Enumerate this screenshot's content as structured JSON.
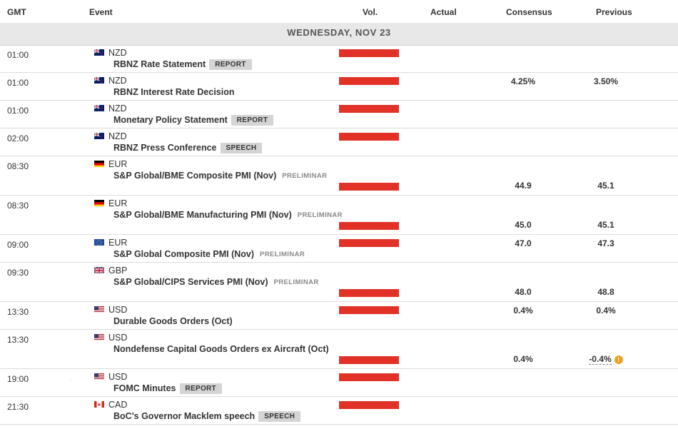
{
  "columns": {
    "gmt": "GMT",
    "event": "Event",
    "vol": "Vol.",
    "actual": "Actual",
    "consensus": "Consensus",
    "previous": "Previous"
  },
  "day_label": "WEDNESDAY, NOV 23",
  "colors": {
    "volume": "#e23227",
    "tag_bg": "#d4d4d4",
    "day_bg": "#e8e8e8",
    "warning": "#f0a020"
  },
  "events": [
    {
      "time": "01:00",
      "flag": "nz",
      "currency": "NZD",
      "event": "RBNZ Rate Statement",
      "tag": "REPORT",
      "preliminary": "",
      "consensus": "",
      "previous": "",
      "layout": "short"
    },
    {
      "time": "01:00",
      "flag": "nz",
      "currency": "NZD",
      "event": "RBNZ Interest Rate Decision",
      "tag": "",
      "preliminary": "",
      "consensus": "4.25%",
      "previous": "3.50%",
      "layout": "short"
    },
    {
      "time": "01:00",
      "flag": "nz",
      "currency": "NZD",
      "event": "Monetary Policy Statement",
      "tag": "REPORT",
      "preliminary": "",
      "consensus": "",
      "previous": "",
      "layout": "short"
    },
    {
      "time": "02:00",
      "flag": "nz",
      "currency": "NZD",
      "event": "RBNZ Press Conference",
      "tag": "SPEECH",
      "preliminary": "",
      "consensus": "",
      "previous": "",
      "layout": "short"
    },
    {
      "time": "08:30",
      "flag": "de",
      "currency": "EUR",
      "event": "S&P Global/BME Composite PMI (Nov)",
      "tag": "",
      "preliminary": "PRELIMINAR",
      "consensus": "44.9",
      "previous": "45.1",
      "layout": "tall"
    },
    {
      "time": "08:30",
      "flag": "de",
      "currency": "EUR",
      "event": "S&P Global/BME Manufacturing PMI (Nov)",
      "tag": "",
      "preliminary": "PRELIMINAR",
      "consensus": "45.0",
      "previous": "45.1",
      "layout": "tall"
    },
    {
      "time": "09:00",
      "flag": "eu",
      "currency": "EUR",
      "event": "S&P Global Composite PMI (Nov)",
      "tag": "",
      "preliminary": "PRELIMINAR",
      "consensus": "47.0",
      "previous": "47.3",
      "layout": "short"
    },
    {
      "time": "09:30",
      "flag": "gb",
      "currency": "GBP",
      "event": "S&P Global/CIPS Services PMI (Nov)",
      "tag": "",
      "preliminary": "PRELIMINAR",
      "consensus": "48.0",
      "previous": "48.8",
      "layout": "tall"
    },
    {
      "time": "13:30",
      "flag": "us",
      "currency": "USD",
      "event": "Durable Goods Orders (Oct)",
      "tag": "",
      "preliminary": "",
      "consensus": "0.4%",
      "previous": "0.4%",
      "layout": "short"
    },
    {
      "time": "13:30",
      "flag": "us",
      "currency": "USD",
      "event": "Nondefense Capital Goods Orders ex Aircraft (Oct)",
      "tag": "",
      "preliminary": "",
      "consensus": "0.4%",
      "previous": "-0.4%",
      "revised": true,
      "layout": "tall"
    },
    {
      "time": "19:00",
      "flag": "us",
      "currency": "USD",
      "event": "FOMC Minutes",
      "tag": "REPORT",
      "preliminary": "",
      "consensus": "",
      "previous": "",
      "layout": "short"
    },
    {
      "time": "21:30",
      "flag": "ca",
      "currency": "CAD",
      "event": "BoC's Governor Macklem speech",
      "tag": "SPEECH",
      "preliminary": "",
      "consensus": "",
      "previous": "",
      "layout": "short"
    }
  ]
}
